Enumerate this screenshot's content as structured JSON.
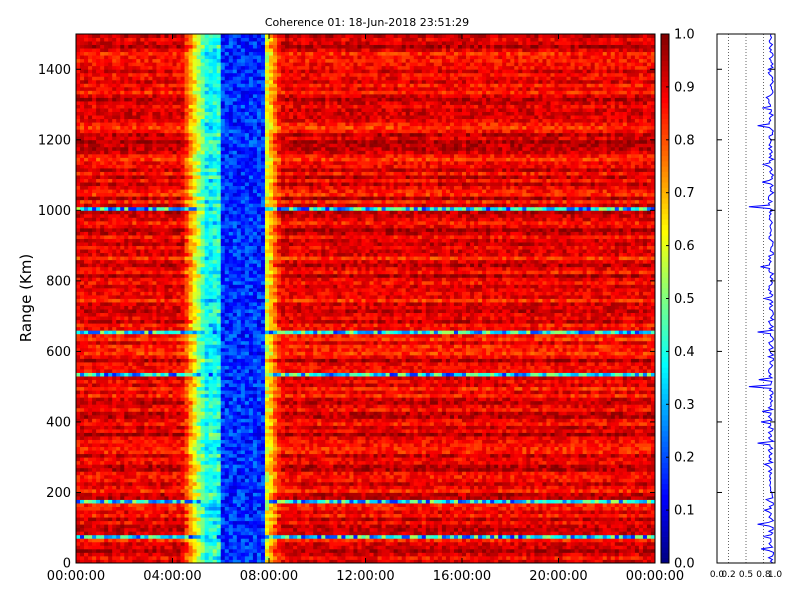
{
  "chart_data": [
    {
      "type": "heatmap",
      "title": "Coherence 01: 18-Jun-2018 23:51:29",
      "xlabel": "",
      "ylabel": "Range (Km)",
      "x_ticks": [
        "00:00:00",
        "04:00:00",
        "08:00:00",
        "12:00:00",
        "16:00:00",
        "20:00:00",
        "00:00:00"
      ],
      "x_tick_hours": [
        0,
        4,
        8,
        12,
        16,
        20,
        24
      ],
      "xlim_hours": [
        0,
        24
      ],
      "ylim": [
        0,
        1500
      ],
      "y_ticks": [
        0,
        200,
        400,
        600,
        800,
        1000,
        1200,
        1400
      ],
      "colormap": "jet",
      "colorbar": {
        "range": [
          0.0,
          1.0
        ],
        "ticks": [
          "0.0",
          "0.1",
          "0.2",
          "0.3",
          "0.4",
          "0.5",
          "0.6",
          "0.7",
          "0.8",
          "0.9",
          "1.0"
        ]
      },
      "dominant_value": 0.88,
      "low_band_hours": [
        4.4,
        8.5
      ],
      "lowest_band_hours": [
        6.0,
        7.8
      ],
      "low_coherence_ranges_km": [
        40,
        75,
        150,
        175,
        300,
        340,
        500,
        535,
        655,
        840,
        1010,
        1020,
        1080
      ]
    },
    {
      "type": "line",
      "title": "",
      "orientation": "vertical",
      "xlim": [
        0.0,
        1.0
      ],
      "x_ticks": [
        "0.0",
        "0.2",
        "0.5",
        "0.8",
        "1.0"
      ],
      "x_tick_values": [
        0.0,
        0.2,
        0.5,
        0.8,
        1.0
      ],
      "ylim": [
        0,
        1500
      ],
      "grid": "dotted vertical lines at 0.2, 0.5, 0.8",
      "line_color": "#0000ff",
      "profile_typical": 0.93,
      "dips": [
        {
          "range_km": 1010,
          "value": 0.55
        },
        {
          "range_km": 1130,
          "value": 0.8
        },
        {
          "range_km": 1240,
          "value": 0.7
        },
        {
          "range_km": 1290,
          "value": 0.78
        },
        {
          "range_km": 1320,
          "value": 0.85
        },
        {
          "range_km": 1080,
          "value": 0.78
        },
        {
          "range_km": 840,
          "value": 0.75
        },
        {
          "range_km": 750,
          "value": 0.82
        },
        {
          "range_km": 655,
          "value": 0.7
        },
        {
          "range_km": 520,
          "value": 0.72
        },
        {
          "range_km": 500,
          "value": 0.55
        },
        {
          "range_km": 430,
          "value": 0.78
        },
        {
          "range_km": 400,
          "value": 0.76
        },
        {
          "range_km": 340,
          "value": 0.7
        },
        {
          "range_km": 280,
          "value": 0.82
        },
        {
          "range_km": 180,
          "value": 0.85
        },
        {
          "range_km": 150,
          "value": 0.82
        },
        {
          "range_km": 110,
          "value": 0.7
        },
        {
          "range_km": 75,
          "value": 0.8
        },
        {
          "range_km": 40,
          "value": 0.76
        }
      ]
    }
  ]
}
